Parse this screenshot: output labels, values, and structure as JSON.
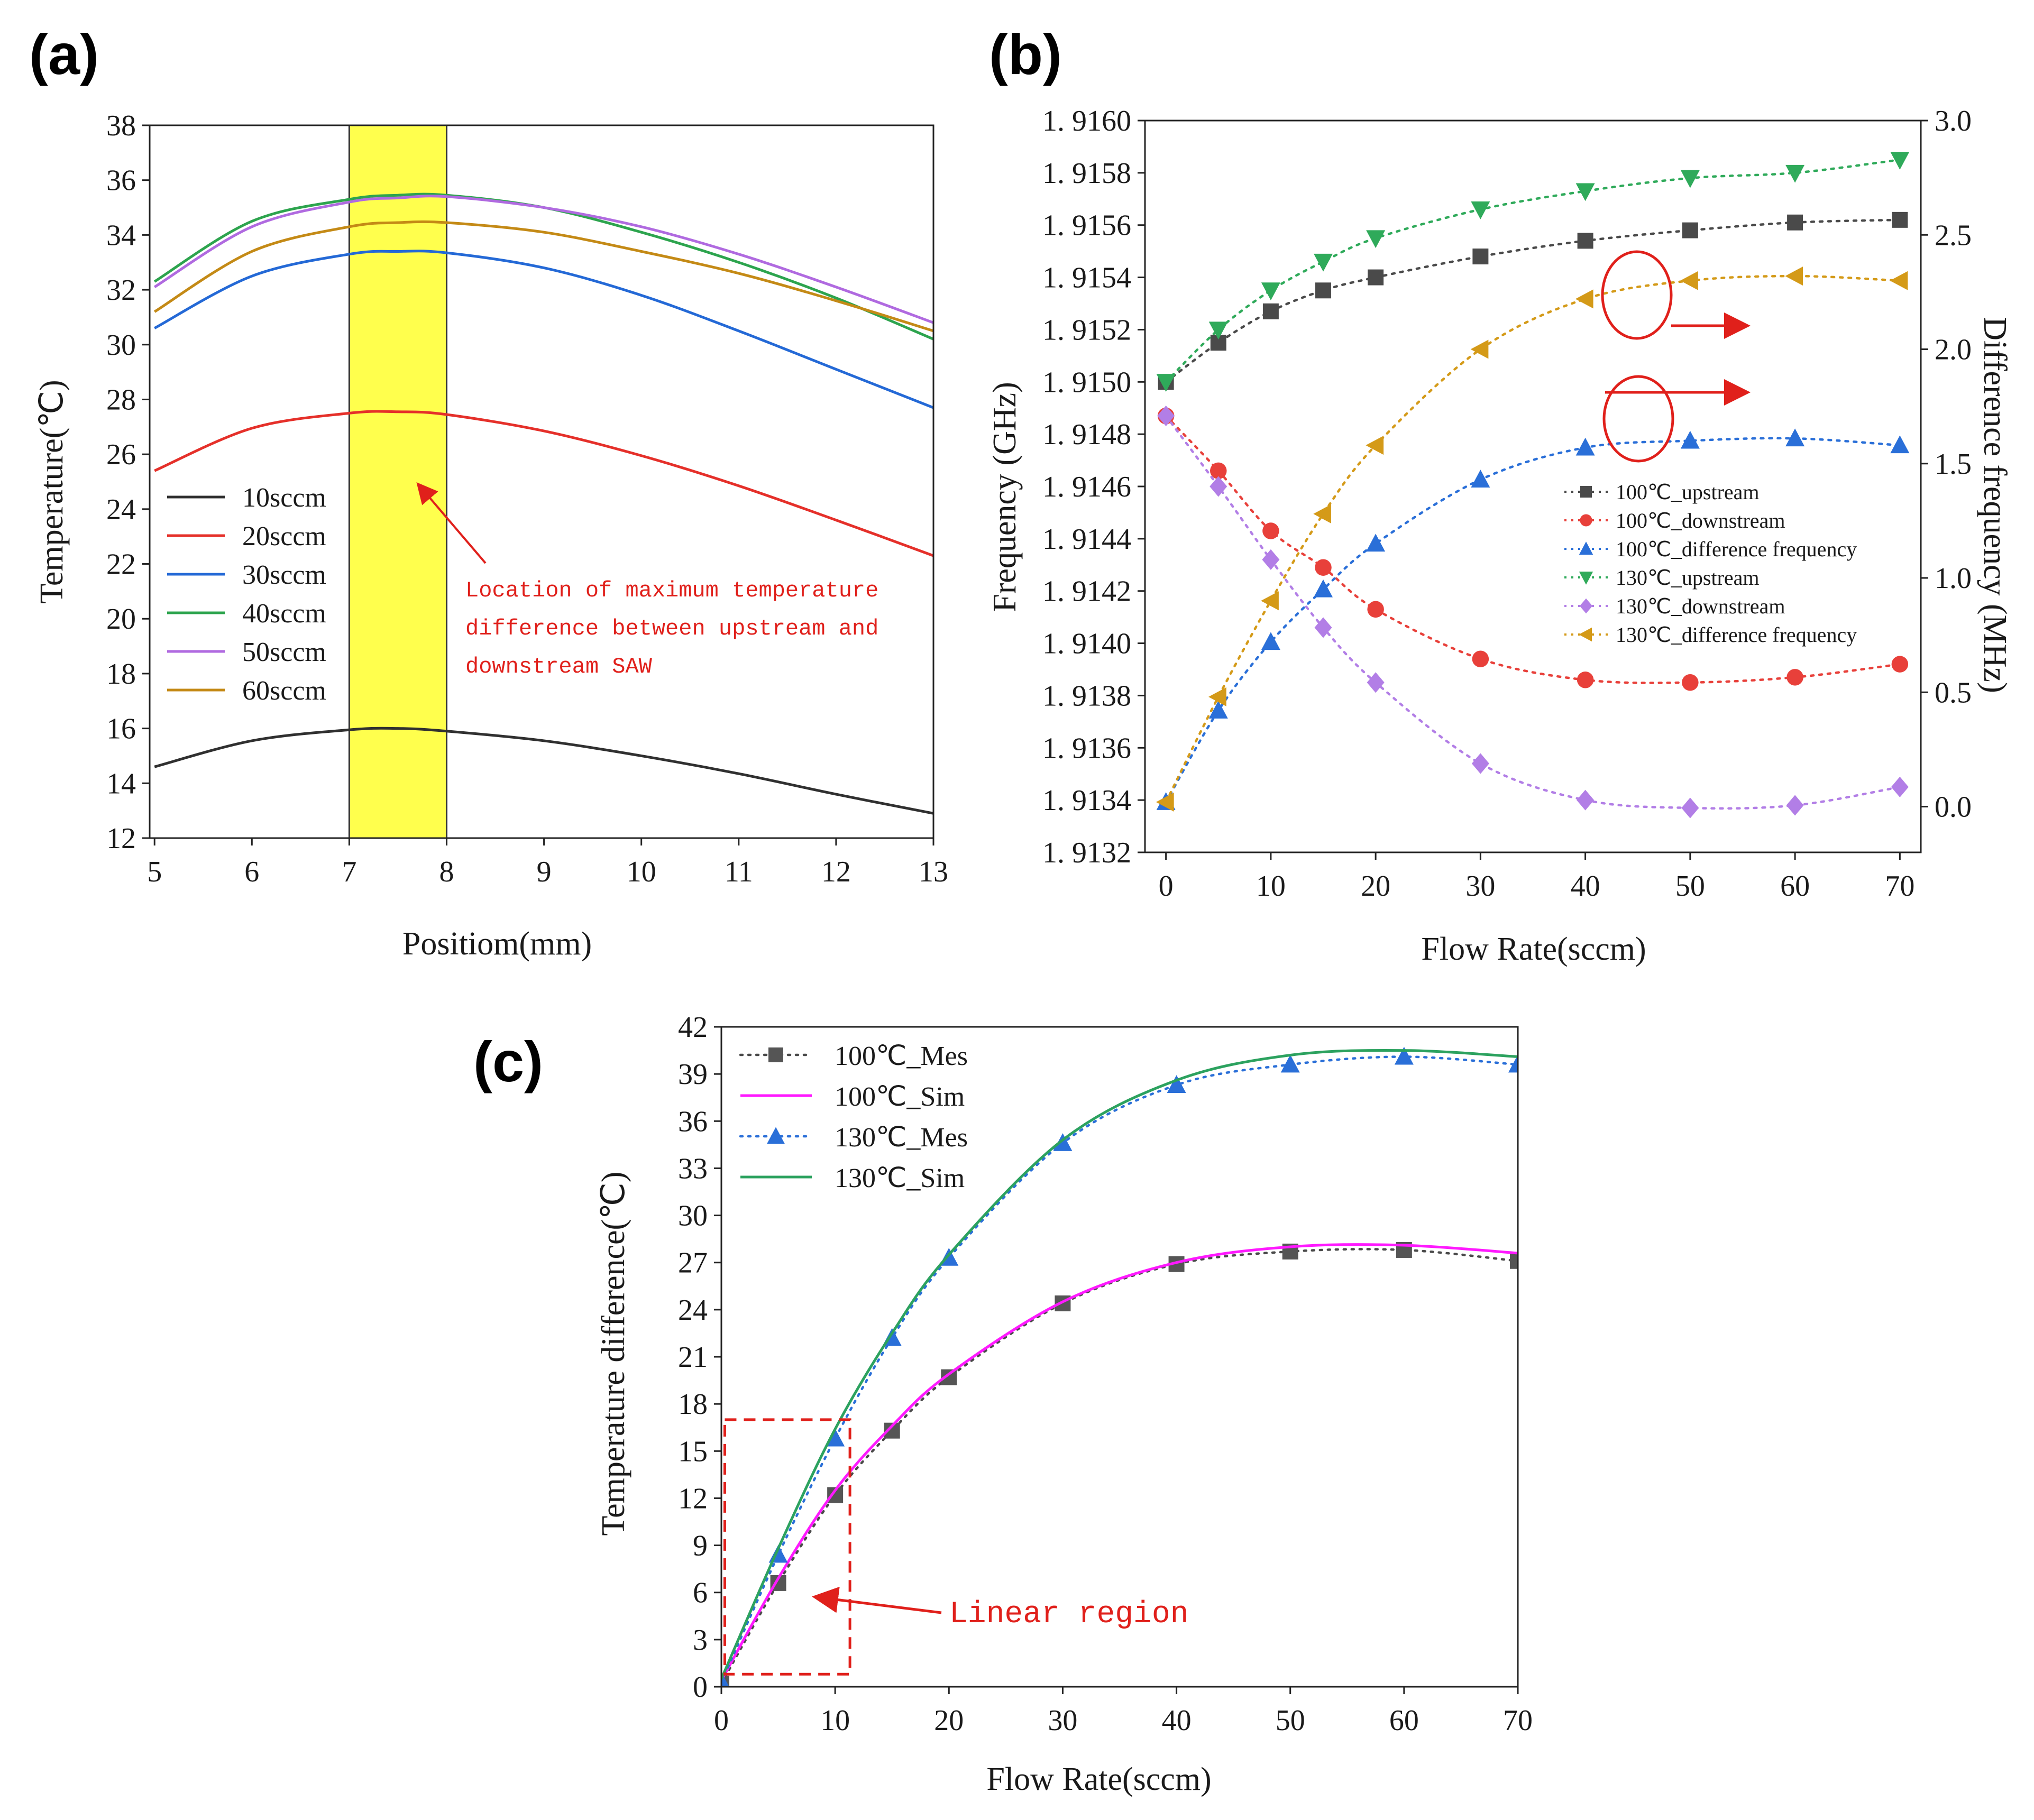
{
  "panels": [
    {
      "label": "(a)",
      "chart_data": {
        "type": "line",
        "title": "",
        "xlabel": "Positiom(mm)",
        "ylabel": "Temperature(℃)",
        "xlim": [
          4.95,
          13
        ],
        "ylim": [
          12,
          38
        ],
        "xticks": [
          5,
          6,
          7,
          8,
          9,
          10,
          11,
          12,
          13
        ],
        "yticks": [
          12,
          14,
          16,
          18,
          20,
          22,
          24,
          26,
          28,
          30,
          32,
          34,
          36,
          38
        ],
        "highlight_band": {
          "x": [
            7,
            8
          ],
          "color": "#ffff4d"
        },
        "legend_position": "lower-left",
        "series": [
          {
            "name": "10sccm",
            "color": "#303030",
            "x": [
              5,
              6,
              7,
              7.5,
              8,
              9,
              10,
              11,
              12,
              13
            ],
            "y": [
              14.6,
              15.55,
              15.95,
              16.0,
              15.9,
              15.55,
              15.0,
              14.35,
              13.6,
              12.9
            ]
          },
          {
            "name": "20sccm",
            "color": "#e5302a",
            "x": [
              5,
              6,
              7,
              7.5,
              8,
              9,
              10,
              11,
              12,
              13
            ],
            "y": [
              25.4,
              26.95,
              27.5,
              27.55,
              27.45,
              26.85,
              25.95,
              24.85,
              23.6,
              22.3
            ]
          },
          {
            "name": "30sccm",
            "color": "#2469d6",
            "x": [
              5,
              6,
              7,
              7.5,
              8,
              9,
              10,
              11,
              12,
              13
            ],
            "y": [
              30.6,
              32.5,
              33.3,
              33.4,
              33.35,
              32.8,
              31.8,
              30.5,
              29.1,
              27.7
            ]
          },
          {
            "name": "40sccm",
            "color": "#2da44e",
            "x": [
              5,
              6,
              7,
              7.5,
              8,
              9,
              10,
              11,
              12,
              13
            ],
            "y": [
              32.3,
              34.5,
              35.3,
              35.45,
              35.45,
              35.0,
              34.1,
              33.0,
              31.7,
              30.2
            ]
          },
          {
            "name": "50sccm",
            "color": "#b06ae0",
            "x": [
              5,
              6,
              7,
              7.5,
              8,
              9,
              10,
              11,
              12,
              13
            ],
            "y": [
              32.1,
              34.3,
              35.2,
              35.35,
              35.4,
              35.0,
              34.3,
              33.3,
              32.1,
              30.8
            ]
          },
          {
            "name": "60sccm",
            "color": "#c48a16",
            "x": [
              5,
              6,
              7,
              7.5,
              8,
              9,
              10,
              11,
              12,
              13
            ],
            "y": [
              31.2,
              33.4,
              34.3,
              34.45,
              34.45,
              34.1,
              33.4,
              32.6,
              31.6,
              30.5
            ]
          }
        ],
        "annotations": [
          {
            "lines": [
              "Location of maximum temperature",
              "difference between upstream and",
              "downstream SAW"
            ],
            "arrow_to": [
              7.6,
              26.5
            ]
          }
        ]
      }
    },
    {
      "label": "(b)",
      "chart_data": {
        "type": "scatter",
        "title": "",
        "xlabel": "Flow Rate(sccm)",
        "ylabel": "Frequency (GHz)",
        "ylabel_right": "Difference frequency (MHz)",
        "x": [
          0,
          5,
          10,
          15,
          20,
          30,
          40,
          50,
          60,
          70
        ],
        "xticks": [
          0,
          10,
          20,
          30,
          40,
          50,
          60,
          70
        ],
        "xlim": [
          -2,
          72
        ],
        "ylim": [
          1.9132,
          1.916
        ],
        "yticks": [
          "1.9132",
          "1.9134",
          "1.9136",
          "1.9138",
          "1.9140",
          "1.9142",
          "1.9144",
          "1.9146",
          "1.9148",
          "1.9150",
          "1.9152",
          "1.9154",
          "1.9156",
          "1.9158",
          "1.9160"
        ],
        "ylim_right": [
          -0.2,
          3.0
        ],
        "yticks_right": [
          "0.0",
          "0.5",
          "1.0",
          "1.5",
          "2.0",
          "2.5",
          "3.0"
        ],
        "legend_position": "right-middle",
        "series": [
          {
            "name": "100℃_upstream",
            "axis": "left",
            "marker": "square",
            "color": "#4a4a4a",
            "values": [
              1.915,
              1.91515,
              1.91527,
              1.91535,
              1.9154,
              1.91548,
              1.91554,
              1.91558,
              1.91561,
              1.91562
            ]
          },
          {
            "name": "100℃_downstream",
            "axis": "left",
            "marker": "circle",
            "color": "#e8403a",
            "values": [
              1.91487,
              1.91466,
              1.91443,
              1.91429,
              1.91413,
              1.91394,
              1.91386,
              1.91385,
              1.91387,
              1.91392
            ]
          },
          {
            "name": "100℃_difference frequency",
            "axis": "right",
            "marker": "triangle-up",
            "color": "#2a6fd8",
            "values": [
              0.02,
              0.42,
              0.72,
              0.95,
              1.15,
              1.43,
              1.57,
              1.6,
              1.61,
              1.58
            ]
          },
          {
            "name": "130℃_upstream",
            "axis": "left",
            "marker": "triangle-down",
            "color": "#2faa5a",
            "values": [
              1.915,
              1.9152,
              1.91535,
              1.91546,
              1.91555,
              1.91566,
              1.91573,
              1.91578,
              1.9158,
              1.91585
            ]
          },
          {
            "name": "130℃_downstream",
            "axis": "left",
            "marker": "diamond",
            "color": "#b27ee6",
            "values": [
              1.91487,
              1.9146,
              1.91432,
              1.91406,
              1.91385,
              1.91354,
              1.9134,
              1.91337,
              1.91338,
              1.91345
            ]
          },
          {
            "name": "130℃_difference frequency",
            "axis": "right",
            "marker": "triangle-left",
            "color": "#d49a18",
            "values": [
              0.02,
              0.48,
              0.9,
              1.28,
              1.58,
              2.0,
              2.22,
              2.3,
              2.32,
              2.3
            ]
          }
        ]
      }
    },
    {
      "label": "(c)",
      "chart_data": {
        "type": "line",
        "title": "",
        "xlabel": "Flow Rate(sccm)",
        "ylabel": "Temperature difference(℃)",
        "xlim": [
          0,
          70
        ],
        "ylim": [
          0,
          42
        ],
        "xticks": [
          0,
          10,
          20,
          30,
          40,
          50,
          60,
          70
        ],
        "yticks": [
          0,
          3,
          6,
          9,
          12,
          15,
          18,
          21,
          24,
          27,
          30,
          33,
          36,
          39,
          42
        ],
        "legend_position": "top-left",
        "series": [
          {
            "name": "100℃_Mes",
            "style": "dotted-marker",
            "marker": "square",
            "color": "#4a4a4a",
            "x": [
              0,
              5,
              10,
              15,
              20,
              30,
              40,
              50,
              60,
              70
            ],
            "y": [
              0.2,
              6.6,
              12.2,
              16.3,
              19.7,
              24.4,
              26.9,
              27.7,
              27.8,
              27.1
            ]
          },
          {
            "name": "100℃_Sim",
            "style": "solid",
            "color": "#ff19ff",
            "x": [
              0,
              5,
              10,
              15,
              20,
              30,
              40,
              50,
              60,
              70
            ],
            "y": [
              0.4,
              6.9,
              12.5,
              16.6,
              19.9,
              24.5,
              27.0,
              28.0,
              28.1,
              27.6
            ]
          },
          {
            "name": "130℃_Mes",
            "style": "dotted-marker",
            "marker": "triangle-up",
            "color": "#2a6fd8",
            "x": [
              0,
              5,
              10,
              15,
              20,
              30,
              40,
              50,
              60,
              70
            ],
            "y": [
              0.3,
              8.4,
              15.8,
              22.2,
              27.3,
              34.6,
              38.3,
              39.6,
              40.1,
              39.6
            ]
          },
          {
            "name": "130℃_Sim",
            "style": "solid",
            "color": "#2ca25f",
            "x": [
              0,
              5,
              10,
              15,
              20,
              30,
              40,
              50,
              60,
              70
            ],
            "y": [
              0.5,
              8.8,
              16.4,
              22.5,
              27.5,
              34.8,
              38.6,
              40.2,
              40.5,
              40.1
            ]
          }
        ],
        "annotations": [
          {
            "text": "Linear region",
            "box": {
              "x": [
                0.3,
                11.3
              ],
              "y": [
                0.8,
                17
              ]
            }
          }
        ]
      }
    }
  ]
}
